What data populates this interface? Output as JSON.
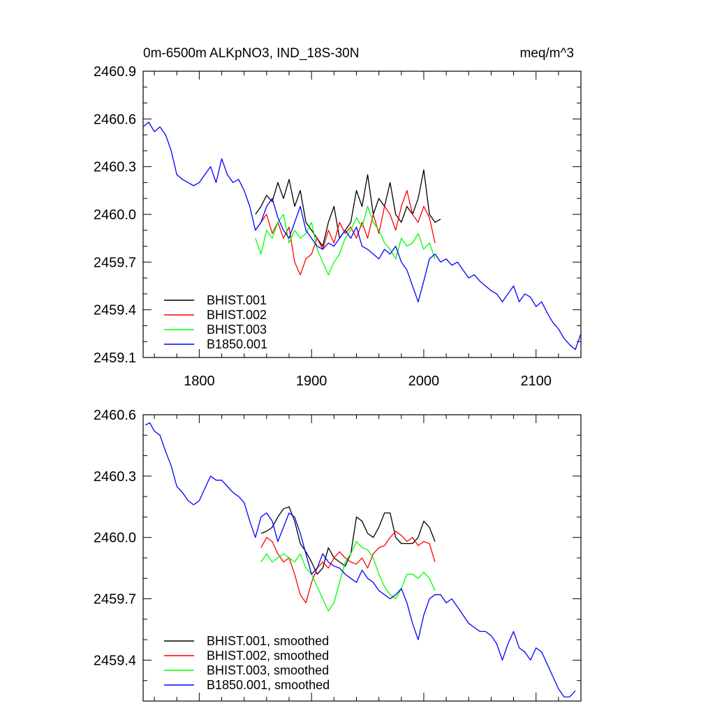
{
  "chart_data": [
    {
      "type": "line",
      "title_left": "0m-6500m ALKpNO3, IND_18S-30N",
      "title_right": "meq/m^3",
      "xlabel": "",
      "ylabel": "",
      "xlim": [
        1750,
        2140
      ],
      "ylim": [
        2459.1,
        2460.9
      ],
      "xticks": [
        1800,
        1900,
        2000,
        2100
      ],
      "xtick_labels": [
        "1800",
        "1900",
        "2000",
        "2100"
      ],
      "yticks": [
        2459.1,
        2459.4,
        2459.7,
        2460.0,
        2460.3,
        2460.6,
        2460.9
      ],
      "ytick_labels": [
        "2459.1",
        "2459.4",
        "2459.7",
        "2460.0",
        "2460.3",
        "2460.6",
        "2460.9"
      ],
      "legend_position": "bottom-left",
      "series": [
        {
          "name": "BHIST.001",
          "color": "#000000",
          "x": [
            1850,
            1855,
            1860,
            1865,
            1870,
            1875,
            1880,
            1885,
            1890,
            1895,
            1900,
            1905,
            1910,
            1915,
            1920,
            1925,
            1930,
            1935,
            1940,
            1945,
            1950,
            1955,
            1960,
            1965,
            1970,
            1975,
            1980,
            1985,
            1990,
            1995,
            2000,
            2005,
            2010,
            2015
          ],
          "y": [
            2460.0,
            2460.05,
            2460.12,
            2460.08,
            2460.2,
            2460.1,
            2460.22,
            2460.05,
            2460.15,
            2459.95,
            2459.9,
            2459.85,
            2459.8,
            2459.95,
            2460.05,
            2459.85,
            2459.9,
            2459.95,
            2460.15,
            2460.05,
            2460.25,
            2460.0,
            2460.1,
            2460.05,
            2460.2,
            2460.0,
            2459.95,
            2460.05,
            2460.0,
            2460.1,
            2460.28,
            2460.0,
            2459.95,
            2459.97
          ]
        },
        {
          "name": "BHIST.002",
          "color": "#ff0000",
          "x": [
            1850,
            1855,
            1860,
            1865,
            1870,
            1875,
            1880,
            1885,
            1890,
            1895,
            1900,
            1905,
            1910,
            1915,
            1920,
            1925,
            1930,
            1935,
            1940,
            1945,
            1950,
            1955,
            1960,
            1965,
            1970,
            1975,
            1980,
            1985,
            1990,
            1995,
            2000,
            2005,
            2010
          ],
          "y": [
            2459.9,
            2459.95,
            2460.0,
            2459.88,
            2459.95,
            2459.85,
            2459.92,
            2459.7,
            2459.62,
            2459.72,
            2459.75,
            2459.85,
            2459.78,
            2459.9,
            2459.82,
            2459.95,
            2459.88,
            2459.92,
            2459.85,
            2459.95,
            2459.85,
            2460.0,
            2459.88,
            2460.05,
            2460.0,
            2459.9,
            2460.05,
            2460.15,
            2460.0,
            2459.95,
            2460.05,
            2459.98,
            2459.82
          ]
        },
        {
          "name": "BHIST.003",
          "color": "#00ff00",
          "x": [
            1850,
            1855,
            1860,
            1865,
            1870,
            1875,
            1880,
            1885,
            1890,
            1895,
            1900,
            1905,
            1910,
            1915,
            1920,
            1925,
            1930,
            1935,
            1940,
            1945,
            1950,
            1955,
            1960,
            1965,
            1970,
            1975,
            1980,
            1985,
            1990,
            1995,
            2000,
            2005,
            2010
          ],
          "y": [
            2459.85,
            2459.75,
            2459.9,
            2459.85,
            2459.95,
            2460.0,
            2459.82,
            2459.9,
            2459.85,
            2459.88,
            2459.95,
            2459.78,
            2459.7,
            2459.62,
            2459.7,
            2459.75,
            2459.85,
            2459.9,
            2459.98,
            2459.92,
            2460.05,
            2459.95,
            2459.9,
            2459.82,
            2459.78,
            2459.72,
            2459.85,
            2459.8,
            2459.82,
            2459.88,
            2459.78,
            2459.82,
            2459.72
          ]
        },
        {
          "name": "B1850.001",
          "color": "#0000ff",
          "x": [
            1750,
            1755,
            1760,
            1765,
            1770,
            1775,
            1780,
            1785,
            1790,
            1795,
            1800,
            1805,
            1810,
            1815,
            1820,
            1825,
            1830,
            1835,
            1840,
            1845,
            1850,
            1855,
            1860,
            1865,
            1870,
            1875,
            1880,
            1885,
            1890,
            1895,
            1900,
            1905,
            1910,
            1915,
            1920,
            1925,
            1930,
            1935,
            1940,
            1945,
            1950,
            1955,
            1960,
            1965,
            1970,
            1975,
            1980,
            1985,
            1990,
            1995,
            2000,
            2005,
            2010,
            2015,
            2020,
            2025,
            2030,
            2035,
            2040,
            2045,
            2050,
            2055,
            2060,
            2065,
            2070,
            2075,
            2080,
            2085,
            2090,
            2095,
            2100,
            2105,
            2110,
            2115,
            2120,
            2125,
            2130,
            2135,
            2140
          ],
          "y": [
            2460.55,
            2460.58,
            2460.52,
            2460.55,
            2460.5,
            2460.4,
            2460.25,
            2460.22,
            2460.2,
            2460.18,
            2460.2,
            2460.25,
            2460.3,
            2460.2,
            2460.35,
            2460.25,
            2460.2,
            2460.22,
            2460.15,
            2460.05,
            2459.9,
            2459.95,
            2460.05,
            2460.1,
            2459.98,
            2459.9,
            2459.85,
            2459.95,
            2460.05,
            2459.9,
            2459.85,
            2459.8,
            2459.78,
            2459.82,
            2459.8,
            2459.85,
            2459.9,
            2459.85,
            2459.92,
            2459.8,
            2459.78,
            2459.75,
            2459.72,
            2459.78,
            2459.75,
            2459.8,
            2459.7,
            2459.65,
            2459.55,
            2459.45,
            2459.58,
            2459.72,
            2459.75,
            2459.7,
            2459.72,
            2459.68,
            2459.7,
            2459.65,
            2459.6,
            2459.62,
            2459.58,
            2459.55,
            2459.52,
            2459.5,
            2459.45,
            2459.5,
            2459.55,
            2459.45,
            2459.5,
            2459.48,
            2459.42,
            2459.45,
            2459.38,
            2459.32,
            2459.28,
            2459.22,
            2459.18,
            2459.15,
            2459.25
          ]
        }
      ]
    },
    {
      "type": "line",
      "title_left": "",
      "title_right": "",
      "xlabel": "",
      "ylabel": "",
      "xlim": [
        1750,
        2140
      ],
      "ylim": [
        2459.2,
        2460.6
      ],
      "xticks": [
        1800,
        1900,
        2000,
        2100
      ],
      "xtick_labels": [
        "",
        "",
        "",
        ""
      ],
      "yticks": [
        2459.4,
        2459.7,
        2460.0,
        2460.3,
        2460.6
      ],
      "ytick_labels": [
        "2459.4",
        "2459.7",
        "2460.0",
        "2460.3",
        "2460.6"
      ],
      "legend_position": "bottom-left",
      "series": [
        {
          "name": "BHIST.001, smoothed",
          "color": "#000000",
          "x": [
            1855,
            1860,
            1865,
            1870,
            1875,
            1880,
            1885,
            1890,
            1895,
            1900,
            1905,
            1910,
            1915,
            1920,
            1925,
            1930,
            1935,
            1940,
            1945,
            1950,
            1955,
            1960,
            1965,
            1970,
            1975,
            1980,
            1985,
            1990,
            1995,
            2000,
            2005,
            2010
          ],
          "y": [
            2460.02,
            2460.03,
            2460.05,
            2460.1,
            2460.14,
            2460.15,
            2460.08,
            2459.97,
            2459.93,
            2459.88,
            2459.82,
            2459.85,
            2459.95,
            2459.9,
            2459.88,
            2459.86,
            2459.92,
            2460.1,
            2460.08,
            2460.02,
            2460.0,
            2460.05,
            2460.12,
            2460.12,
            2460.0,
            2459.97,
            2459.97,
            2459.97,
            2460.0,
            2460.08,
            2460.05,
            2459.98
          ]
        },
        {
          "name": "BHIST.002, smoothed",
          "color": "#ff0000",
          "x": [
            1855,
            1860,
            1865,
            1870,
            1875,
            1880,
            1885,
            1890,
            1895,
            1900,
            1905,
            1910,
            1915,
            1920,
            1925,
            1930,
            1935,
            1940,
            1945,
            1950,
            1955,
            1960,
            1965,
            1970,
            1975,
            1980,
            1985,
            1990,
            1995,
            2000,
            2005,
            2010
          ],
          "y": [
            2459.95,
            2460.0,
            2459.98,
            2459.92,
            2459.88,
            2459.9,
            2459.82,
            2459.72,
            2459.68,
            2459.78,
            2459.85,
            2459.88,
            2459.85,
            2459.9,
            2459.93,
            2459.9,
            2459.88,
            2459.87,
            2459.9,
            2459.85,
            2459.92,
            2459.95,
            2459.96,
            2460.0,
            2460.03,
            2460.01,
            2459.98,
            2460.0,
            2459.96,
            2459.98,
            2459.97,
            2459.88
          ]
        },
        {
          "name": "BHIST.003, smoothed",
          "color": "#00ff00",
          "x": [
            1855,
            1860,
            1865,
            1870,
            1875,
            1880,
            1885,
            1890,
            1895,
            1900,
            1905,
            1910,
            1915,
            1920,
            1925,
            1930,
            1935,
            1940,
            1945,
            1950,
            1955,
            1960,
            1965,
            1970,
            1975,
            1980,
            1985,
            1990,
            1995,
            2000,
            2005,
            2010
          ],
          "y": [
            2459.88,
            2459.92,
            2459.88,
            2459.9,
            2459.92,
            2459.9,
            2459.88,
            2459.92,
            2459.85,
            2459.82,
            2459.76,
            2459.7,
            2459.64,
            2459.68,
            2459.78,
            2459.88,
            2459.92,
            2459.98,
            2459.95,
            2459.94,
            2459.9,
            2459.82,
            2459.76,
            2459.72,
            2459.7,
            2459.75,
            2459.82,
            2459.82,
            2459.8,
            2459.83,
            2459.8,
            2459.74
          ]
        },
        {
          "name": "B1850.001, smoothed",
          "color": "#0000ff",
          "x": [
            1752,
            1756,
            1760,
            1765,
            1770,
            1775,
            1780,
            1785,
            1790,
            1795,
            1800,
            1805,
            1810,
            1815,
            1820,
            1825,
            1830,
            1835,
            1840,
            1845,
            1850,
            1855,
            1860,
            1865,
            1870,
            1875,
            1880,
            1885,
            1890,
            1895,
            1900,
            1905,
            1910,
            1915,
            1920,
            1925,
            1930,
            1935,
            1940,
            1945,
            1950,
            1955,
            1960,
            1965,
            1970,
            1975,
            1980,
            1985,
            1990,
            1995,
            2000,
            2005,
            2010,
            2015,
            2020,
            2025,
            2030,
            2035,
            2040,
            2045,
            2050,
            2055,
            2060,
            2065,
            2070,
            2075,
            2080,
            2085,
            2090,
            2095,
            2100,
            2105,
            2110,
            2115,
            2120,
            2125,
            2130,
            2135
          ],
          "y": [
            2460.55,
            2460.56,
            2460.52,
            2460.5,
            2460.42,
            2460.35,
            2460.25,
            2460.22,
            2460.18,
            2460.16,
            2460.18,
            2460.24,
            2460.3,
            2460.28,
            2460.28,
            2460.25,
            2460.22,
            2460.2,
            2460.17,
            2460.08,
            2460.0,
            2460.1,
            2460.12,
            2460.08,
            2459.98,
            2460.05,
            2460.12,
            2460.1,
            2460.02,
            2459.92,
            2459.82,
            2459.85,
            2459.92,
            2459.88,
            2459.86,
            2459.85,
            2459.82,
            2459.8,
            2459.78,
            2459.84,
            2459.8,
            2459.78,
            2459.74,
            2459.72,
            2459.7,
            2459.72,
            2459.75,
            2459.68,
            2459.58,
            2459.5,
            2459.62,
            2459.7,
            2459.72,
            2459.72,
            2459.68,
            2459.7,
            2459.66,
            2459.62,
            2459.58,
            2459.56,
            2459.54,
            2459.54,
            2459.52,
            2459.48,
            2459.4,
            2459.48,
            2459.54,
            2459.46,
            2459.44,
            2459.4,
            2459.46,
            2459.44,
            2459.38,
            2459.32,
            2459.26,
            2459.22,
            2459.22,
            2459.25
          ]
        }
      ]
    }
  ]
}
